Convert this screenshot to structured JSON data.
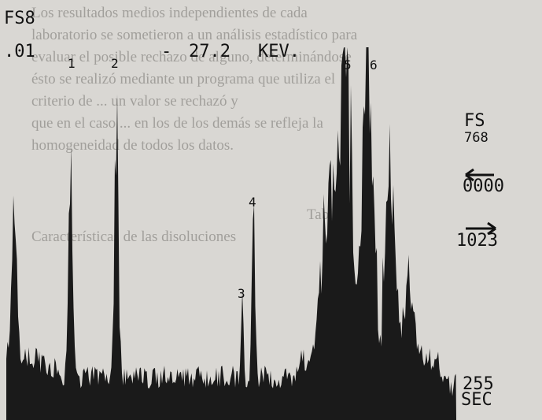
{
  "display": {
    "channel_label": "FS8",
    "scale_label": ".01",
    "separator": "-",
    "energy": "27.2",
    "unit": "KEV.",
    "peaks": [
      "1",
      "2",
      "3",
      "4",
      "5",
      "6"
    ],
    "fs_label": "FS",
    "fs_value": "768",
    "start": "0000",
    "end": "1023",
    "time": "255",
    "time_unit": "SEC"
  },
  "background_text": [
    "Los resultados medios independientes de cada",
    "laboratorio se sometieron a un análisis estadístico para",
    "evaluar el posible rechazo de alguno, determinándose",
    "ésto se realizó mediante un programa que utiliza el",
    "criterio de ... un valor se rechazó y",
    "que en el caso ... en los de los demás se refleja la",
    "homogeneidad de todos los datos.",
    "Tabla I",
    "Características de las disoluciones"
  ]
}
